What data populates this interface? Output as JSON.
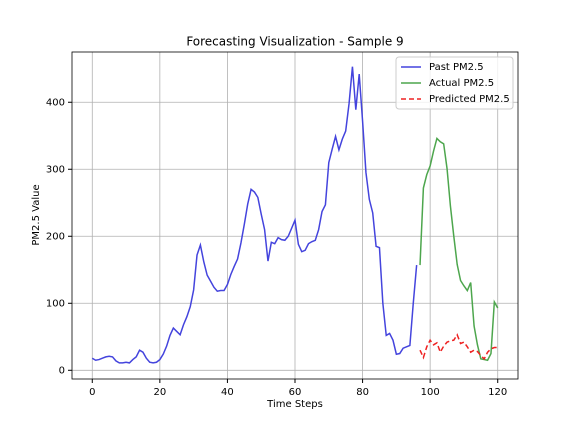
{
  "chart_data": {
    "type": "line",
    "title": "Forecasting Visualization - Sample 9",
    "x_label": "Time Steps",
    "y_label": "PM2.5 Value",
    "xlim": [
      -6,
      126
    ],
    "xticks": [
      0,
      20,
      40,
      60,
      80,
      100,
      120
    ],
    "ylim": [
      -13,
      475
    ],
    "yticks": [
      0,
      100,
      200,
      300,
      400
    ],
    "grid": true,
    "legend": "upper right",
    "series": [
      {
        "name": "Past PM2.5",
        "color": "#4444dd",
        "style": "solid",
        "x": [
          0,
          1,
          2,
          3,
          4,
          5,
          6,
          7,
          8,
          9,
          10,
          11,
          12,
          13,
          14,
          15,
          16,
          17,
          18,
          19,
          20,
          21,
          22,
          23,
          24,
          25,
          26,
          27,
          28,
          29,
          30,
          31,
          32,
          33,
          34,
          35,
          36,
          37,
          38,
          39,
          40,
          41,
          42,
          43,
          44,
          45,
          46,
          47,
          48,
          49,
          50,
          51,
          52,
          53,
          54,
          55,
          56,
          57,
          58,
          59,
          60,
          61,
          62,
          63,
          64,
          65,
          66,
          67,
          68,
          69,
          70,
          71,
          72,
          73,
          74,
          75,
          76,
          77,
          78,
          79,
          80,
          81,
          82,
          83,
          84,
          85,
          86,
          87,
          88,
          89,
          90,
          91,
          92,
          93,
          94,
          95,
          96
        ],
        "values": [
          18,
          15,
          16,
          18,
          20,
          21,
          20,
          14,
          11,
          11,
          12,
          11,
          16,
          20,
          30,
          27,
          18,
          12,
          11,
          12,
          16,
          24,
          36,
          52,
          63,
          58,
          53,
          68,
          80,
          95,
          120,
          172,
          187,
          162,
          142,
          133,
          124,
          118,
          119,
          119,
          128,
          143,
          155,
          166,
          190,
          218,
          248,
          270,
          266,
          258,
          233,
          210,
          163,
          191,
          189,
          198,
          195,
          194,
          200,
          212,
          224,
          188,
          177,
          179,
          189,
          192,
          194,
          210,
          237,
          247,
          310,
          330,
          349,
          329,
          345,
          357,
          398,
          453,
          389,
          442,
          372,
          295,
          255,
          235,
          185,
          183,
          100,
          52,
          55,
          45,
          24,
          25,
          33,
          35,
          37,
          100,
          157
        ]
      },
      {
        "name": "Actual PM2.5",
        "color": "#4da64d",
        "style": "solid",
        "x": [
          97,
          98,
          99,
          100,
          101,
          102,
          103,
          104,
          105,
          106,
          107,
          108,
          109,
          110,
          111,
          112,
          113,
          114,
          115,
          116,
          117,
          118,
          119,
          120
        ],
        "values": [
          157,
          272,
          292,
          305,
          327,
          346,
          341,
          338,
          301,
          245,
          200,
          158,
          134,
          126,
          119,
          131,
          66,
          38,
          17,
          16,
          15,
          25,
          102,
          93
        ]
      },
      {
        "name": "Predicted PM2.5",
        "color": "#ee2222",
        "style": "dashed",
        "x": [
          97,
          98,
          99,
          100,
          101,
          102,
          103,
          104,
          105,
          106,
          107,
          108,
          109,
          110,
          111,
          112,
          113,
          114,
          115,
          116,
          117,
          118,
          119,
          120
        ],
        "values": [
          30,
          19,
          35,
          45,
          38,
          41,
          27,
          36,
          42,
          44,
          45,
          53,
          40,
          42,
          35,
          27,
          30,
          28,
          22,
          17,
          27,
          32,
          34,
          34
        ]
      }
    ]
  }
}
